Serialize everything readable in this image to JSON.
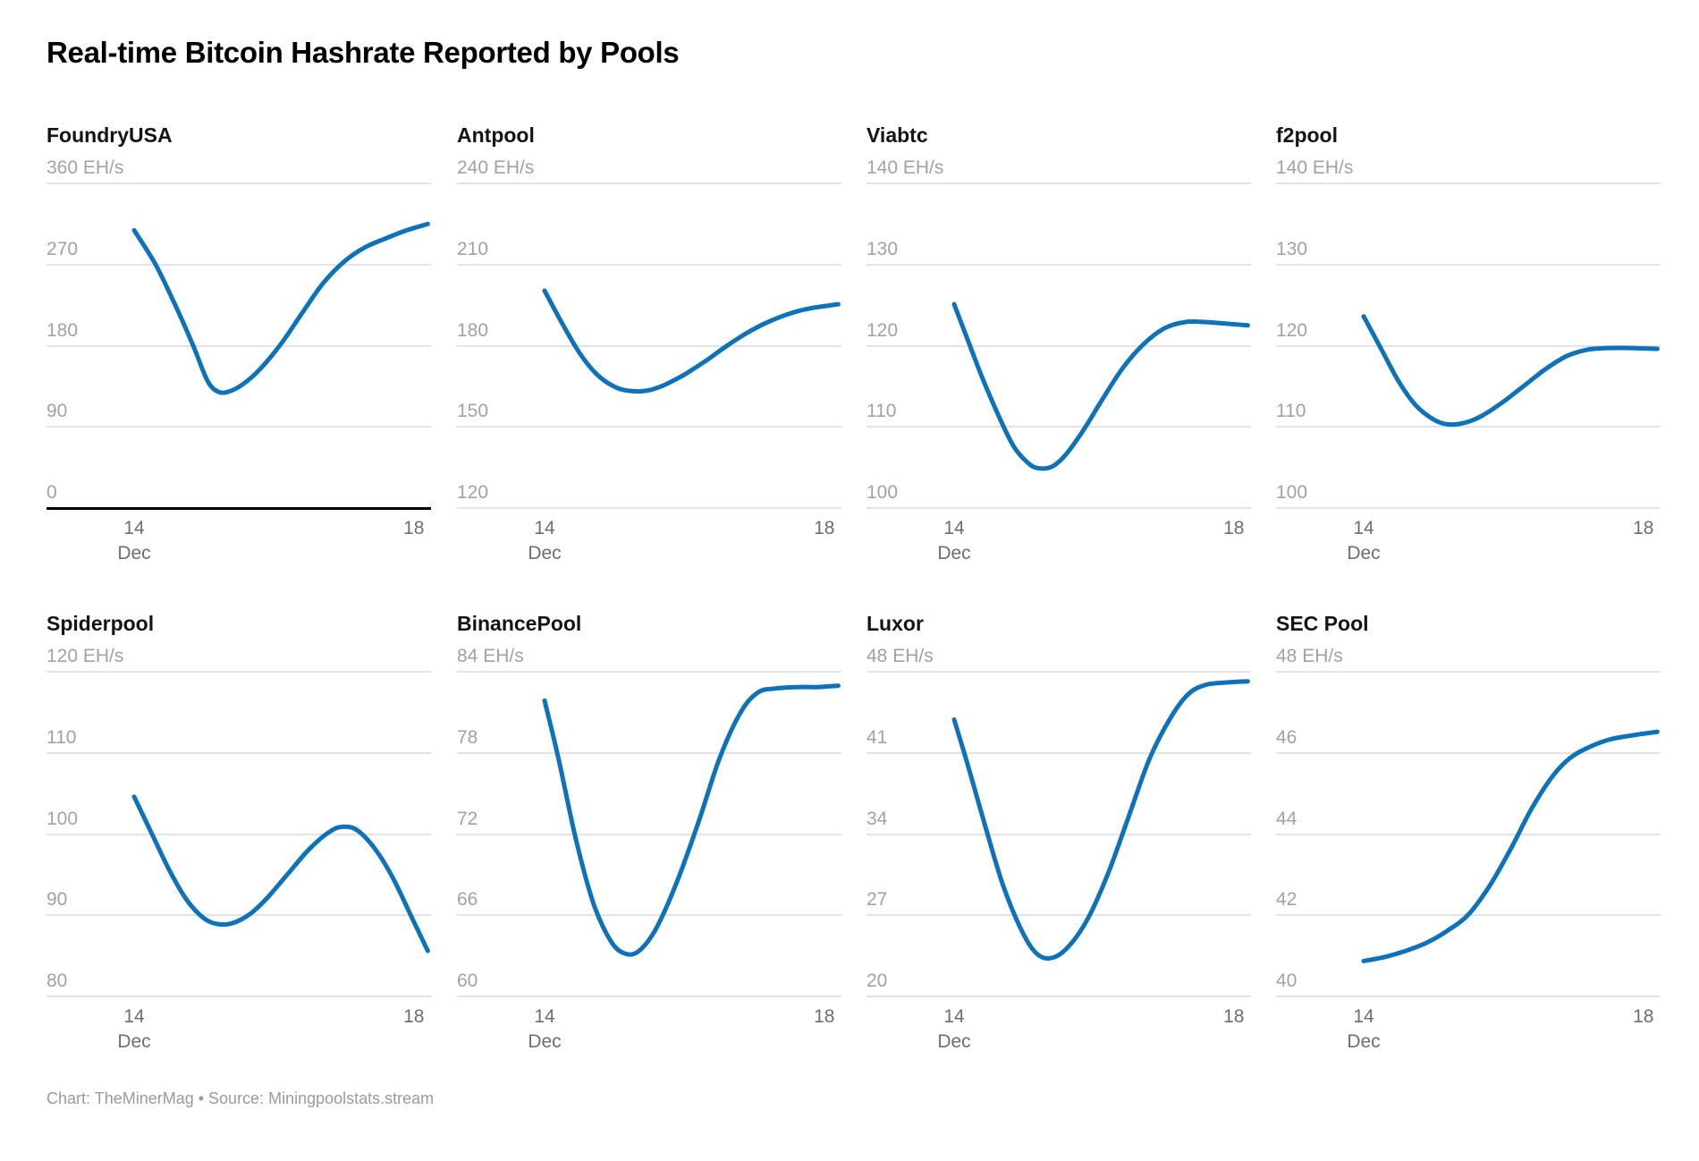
{
  "page": {
    "title": "Real-time Bitcoin Hashrate Reported by Pools",
    "footer": "Chart: TheMinerMag • Source: Miningpoolstats.stream"
  },
  "style": {
    "line_color": "#0d72b9",
    "grid_color": "#e3e3e3",
    "zero_line_color": "#000000",
    "y_label_color": "#a2a2a2",
    "x_label_color": "#6e6e6e"
  },
  "chart_data": [
    {
      "type": "line",
      "title": "FoundryUSA",
      "unit": "EH/s",
      "ylabel": "EH/s",
      "y_min": 0,
      "y_max": 360,
      "y_ticks": [
        "360 EH/s",
        "270",
        "180",
        "90",
        "0"
      ],
      "zero_baseline": true,
      "x_ticks": [
        {
          "label": "14",
          "sublabel": "Dec",
          "day": 14
        },
        {
          "label": "18",
          "sublabel": "",
          "day": 18
        }
      ],
      "x_range": [
        14,
        18.2
      ],
      "points": [
        [
          14.0,
          307
        ],
        [
          14.3,
          270
        ],
        [
          14.6,
          222
        ],
        [
          14.85,
          178
        ],
        [
          15.05,
          140
        ],
        [
          15.2,
          128
        ],
        [
          15.35,
          128
        ],
        [
          15.55,
          136
        ],
        [
          15.8,
          153
        ],
        [
          16.1,
          181
        ],
        [
          16.4,
          215
        ],
        [
          16.7,
          248
        ],
        [
          17.0,
          272
        ],
        [
          17.3,
          288
        ],
        [
          17.6,
          298
        ],
        [
          17.9,
          307
        ],
        [
          18.2,
          314
        ]
      ]
    },
    {
      "type": "line",
      "title": "Antpool",
      "unit": "EH/s",
      "ylabel": "EH/s",
      "y_min": 120,
      "y_max": 240,
      "y_ticks": [
        "240 EH/s",
        "210",
        "180",
        "150",
        "120"
      ],
      "zero_baseline": false,
      "x_ticks": [
        {
          "label": "14",
          "sublabel": "Dec",
          "day": 14
        },
        {
          "label": "18",
          "sublabel": "",
          "day": 18
        }
      ],
      "x_range": [
        14,
        18.2
      ],
      "points": [
        [
          14.0,
          200
        ],
        [
          14.25,
          188
        ],
        [
          14.5,
          177
        ],
        [
          14.75,
          169
        ],
        [
          15.0,
          164.5
        ],
        [
          15.2,
          163
        ],
        [
          15.45,
          163
        ],
        [
          15.7,
          165
        ],
        [
          16.0,
          169
        ],
        [
          16.3,
          174
        ],
        [
          16.6,
          179.5
        ],
        [
          16.9,
          184.5
        ],
        [
          17.2,
          188.5
        ],
        [
          17.5,
          191.5
        ],
        [
          17.8,
          193.5
        ],
        [
          18.2,
          195
        ]
      ]
    },
    {
      "type": "line",
      "title": "Viabtc",
      "unit": "EH/s",
      "ylabel": "EH/s",
      "y_min": 100,
      "y_max": 140,
      "y_ticks": [
        "140 EH/s",
        "130",
        "120",
        "110",
        "100"
      ],
      "zero_baseline": false,
      "x_ticks": [
        {
          "label": "14",
          "sublabel": "Dec",
          "day": 14
        },
        {
          "label": "18",
          "sublabel": "",
          "day": 18
        }
      ],
      "x_range": [
        14,
        18.2
      ],
      "points": [
        [
          14.0,
          125
        ],
        [
          14.2,
          120.5
        ],
        [
          14.4,
          116
        ],
        [
          14.65,
          111
        ],
        [
          14.85,
          107.5
        ],
        [
          15.05,
          105.5
        ],
        [
          15.2,
          104.8
        ],
        [
          15.4,
          105
        ],
        [
          15.6,
          106.5
        ],
        [
          15.85,
          109.5
        ],
        [
          16.1,
          113
        ],
        [
          16.4,
          117
        ],
        [
          16.7,
          120
        ],
        [
          17.0,
          122
        ],
        [
          17.3,
          122.8
        ],
        [
          17.6,
          122.8
        ],
        [
          17.9,
          122.6
        ],
        [
          18.2,
          122.4
        ]
      ]
    },
    {
      "type": "line",
      "title": "f2pool",
      "unit": "EH/s",
      "ylabel": "EH/s",
      "y_min": 100,
      "y_max": 140,
      "y_ticks": [
        "140 EH/s",
        "130",
        "120",
        "110",
        "100"
      ],
      "zero_baseline": false,
      "x_ticks": [
        {
          "label": "14",
          "sublabel": "Dec",
          "day": 14
        },
        {
          "label": "18",
          "sublabel": "",
          "day": 18
        }
      ],
      "x_range": [
        14,
        18.2
      ],
      "points": [
        [
          14.0,
          123.5
        ],
        [
          14.25,
          119.5
        ],
        [
          14.5,
          115.5
        ],
        [
          14.75,
          112.5
        ],
        [
          15.0,
          110.8
        ],
        [
          15.2,
          110.2
        ],
        [
          15.45,
          110.4
        ],
        [
          15.7,
          111.3
        ],
        [
          16.0,
          113
        ],
        [
          16.3,
          115
        ],
        [
          16.6,
          117
        ],
        [
          16.9,
          118.6
        ],
        [
          17.2,
          119.4
        ],
        [
          17.5,
          119.6
        ],
        [
          17.8,
          119.6
        ],
        [
          18.2,
          119.5
        ]
      ]
    },
    {
      "type": "line",
      "title": "Spiderpool",
      "unit": "EH/s",
      "ylabel": "EH/s",
      "y_min": 80,
      "y_max": 120,
      "y_ticks": [
        "120 EH/s",
        "110",
        "100",
        "90",
        "80"
      ],
      "zero_baseline": false,
      "x_ticks": [
        {
          "label": "14",
          "sublabel": "Dec",
          "day": 14
        },
        {
          "label": "18",
          "sublabel": "",
          "day": 18
        }
      ],
      "x_range": [
        14,
        18.2
      ],
      "points": [
        [
          14.0,
          104.5
        ],
        [
          14.25,
          100
        ],
        [
          14.5,
          95.5
        ],
        [
          14.75,
          91.8
        ],
        [
          15.0,
          89.5
        ],
        [
          15.2,
          88.8
        ],
        [
          15.4,
          88.9
        ],
        [
          15.65,
          90
        ],
        [
          15.9,
          92
        ],
        [
          16.2,
          95
        ],
        [
          16.5,
          98
        ],
        [
          16.8,
          100.2
        ],
        [
          17.0,
          100.8
        ],
        [
          17.2,
          100.3
        ],
        [
          17.45,
          98
        ],
        [
          17.7,
          94.5
        ],
        [
          17.95,
          90
        ],
        [
          18.2,
          85.5
        ]
      ]
    },
    {
      "type": "line",
      "title": "BinancePool",
      "unit": "EH/s",
      "ylabel": "EH/s",
      "y_min": 60,
      "y_max": 84,
      "y_ticks": [
        "84 EH/s",
        "78",
        "72",
        "66",
        "60"
      ],
      "zero_baseline": false,
      "x_ticks": [
        {
          "label": "14",
          "sublabel": "Dec",
          "day": 14
        },
        {
          "label": "18",
          "sublabel": "",
          "day": 18
        }
      ],
      "x_range": [
        14,
        18.2
      ],
      "points": [
        [
          14.0,
          81.8
        ],
        [
          14.2,
          77.5
        ],
        [
          14.45,
          71.5
        ],
        [
          14.7,
          66.8
        ],
        [
          14.95,
          64
        ],
        [
          15.15,
          63.1
        ],
        [
          15.35,
          63.3
        ],
        [
          15.6,
          65
        ],
        [
          15.9,
          68.5
        ],
        [
          16.2,
          72.8
        ],
        [
          16.5,
          77.5
        ],
        [
          16.8,
          80.9
        ],
        [
          17.05,
          82.4
        ],
        [
          17.3,
          82.7
        ],
        [
          17.6,
          82.8
        ],
        [
          17.9,
          82.8
        ],
        [
          18.2,
          82.9
        ]
      ]
    },
    {
      "type": "line",
      "title": "Luxor",
      "unit": "EH/s",
      "ylabel": "EH/s",
      "y_min": 20,
      "y_max": 48,
      "y_ticks": [
        "48 EH/s",
        "41",
        "34",
        "27",
        "20"
      ],
      "zero_baseline": false,
      "x_ticks": [
        {
          "label": "14",
          "sublabel": "Dec",
          "day": 14
        },
        {
          "label": "18",
          "sublabel": "",
          "day": 18
        }
      ],
      "x_range": [
        14,
        18.2
      ],
      "points": [
        [
          14.0,
          43.8
        ],
        [
          14.2,
          39.8
        ],
        [
          14.45,
          34.5
        ],
        [
          14.7,
          29.5
        ],
        [
          14.95,
          25.8
        ],
        [
          15.15,
          23.8
        ],
        [
          15.35,
          23.2
        ],
        [
          15.6,
          24
        ],
        [
          15.9,
          26.5
        ],
        [
          16.2,
          30.5
        ],
        [
          16.5,
          35.5
        ],
        [
          16.8,
          40.5
        ],
        [
          17.1,
          44
        ],
        [
          17.35,
          46
        ],
        [
          17.6,
          46.8
        ],
        [
          17.9,
          47
        ],
        [
          18.2,
          47.1
        ]
      ]
    },
    {
      "type": "line",
      "title": "SEC Pool",
      "unit": "EH/s",
      "ylabel": "EH/s",
      "y_min": 40,
      "y_max": 48,
      "y_ticks": [
        "48 EH/s",
        "46",
        "44",
        "42",
        "40"
      ],
      "zero_baseline": false,
      "x_ticks": [
        {
          "label": "14",
          "sublabel": "Dec",
          "day": 14
        },
        {
          "label": "18",
          "sublabel": "",
          "day": 18
        }
      ],
      "x_range": [
        14,
        18.2
      ],
      "points": [
        [
          14.0,
          40.85
        ],
        [
          14.3,
          40.95
        ],
        [
          14.6,
          41.1
        ],
        [
          14.9,
          41.3
        ],
        [
          15.2,
          41.6
        ],
        [
          15.5,
          42.0
        ],
        [
          15.8,
          42.7
        ],
        [
          16.1,
          43.6
        ],
        [
          16.4,
          44.6
        ],
        [
          16.7,
          45.4
        ],
        [
          16.95,
          45.85
        ],
        [
          17.2,
          46.1
        ],
        [
          17.5,
          46.3
        ],
        [
          17.8,
          46.4
        ],
        [
          18.2,
          46.5
        ]
      ]
    }
  ]
}
